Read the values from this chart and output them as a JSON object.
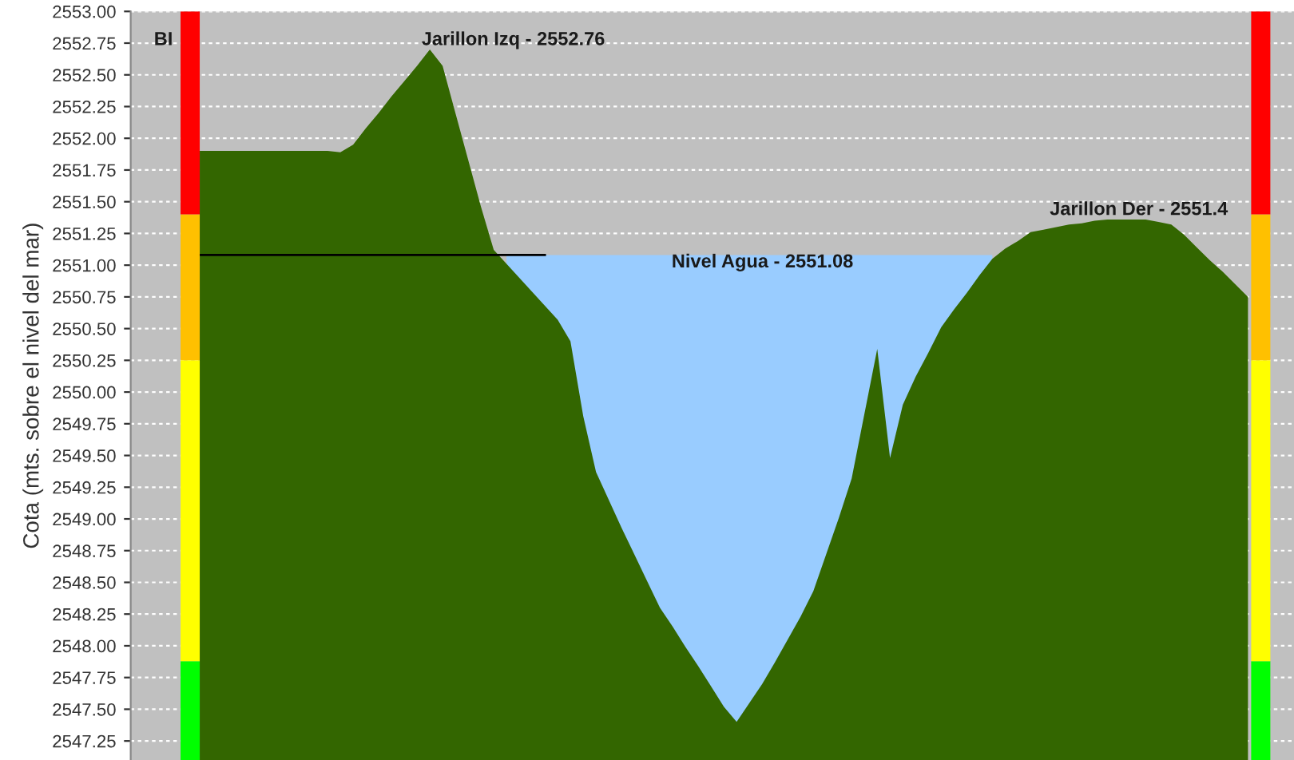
{
  "chart_data": {
    "type": "area",
    "ylabel": "Cota (mts. sobre el nivel del mar)",
    "categories": [
      null,
      null,
      null,
      null,
      null,
      null,
      null,
      null,
      null,
      null,
      null,
      null,
      null,
      null,
      null,
      null,
      null,
      null,
      null,
      null,
      null,
      null,
      null,
      null,
      null,
      null,
      null,
      null,
      null,
      null,
      null,
      null,
      null,
      null,
      null,
      null,
      null,
      null,
      null,
      null,
      null,
      null,
      null,
      null,
      null,
      null,
      null,
      null,
      null,
      null,
      null,
      null,
      null,
      null,
      null,
      null,
      null,
      null,
      null,
      null,
      null,
      null,
      null,
      null,
      null,
      null,
      null,
      null,
      null,
      null,
      null,
      null,
      null,
      null,
      null,
      null,
      null,
      null,
      null,
      null,
      null,
      null,
      null
    ],
    "series": [
      {
        "type": "area",
        "color": "#99ccff",
        "values": [
          null,
          null,
          null,
          null,
          null,
          null,
          null,
          null,
          null,
          null,
          null,
          null,
          null,
          null,
          null,
          null,
          null,
          null,
          null,
          null,
          null,
          null,
          null,
          null,
          2551.08,
          2551.08,
          2551.08,
          2551.08,
          2551.08,
          2551.08,
          2551.08,
          2551.08,
          2551.08,
          2551.08,
          2551.08,
          2551.08,
          2551.08,
          2551.08,
          2551.08,
          2551.08,
          2551.08,
          2551.08,
          2551.08,
          2551.08,
          2551.08,
          2551.08,
          2551.08,
          2551.08,
          2551.08,
          2551.08,
          2551.08,
          2551.08,
          2551.08,
          2551.08,
          2551.08,
          2551.08,
          2551.08,
          2551.08,
          2551.08,
          2551.08,
          2551.08,
          2551.08,
          2551.08,
          null,
          null,
          null,
          null,
          null,
          null,
          null,
          null,
          null,
          null,
          null,
          null,
          null,
          null,
          null,
          null,
          null,
          null,
          null,
          null
        ]
      },
      {
        "color": "#336600",
        "values": [
          2551.9,
          2551.9,
          2551.9,
          2551.9,
          2551.9,
          2551.9,
          2551.9,
          2551.9,
          2551.9,
          2551.9,
          2551.9,
          2551.89,
          2551.95,
          2552.08,
          2552.2,
          2552.33,
          2552.45,
          2552.57,
          2552.7,
          2552.57,
          2552.2,
          2551.83,
          2551.46,
          2551.12,
          2551.01,
          2550.9,
          2550.79,
          2550.68,
          2550.57,
          2550.4,
          2549.81,
          2549.37,
          2549.15,
          2548.93,
          2548.72,
          2548.51,
          2548.3,
          2548.15,
          2547.99,
          2547.84,
          2547.68,
          2547.52,
          2547.4,
          2547.55,
          2547.7,
          2547.87,
          2548.05,
          2548.23,
          2548.43,
          2548.72,
          2549.01,
          2549.32,
          2549.83,
          2550.34,
          2549.48,
          2549.9,
          2550.12,
          2550.31,
          2550.51,
          2550.65,
          2550.78,
          2550.92,
          2551.05,
          2551.13,
          2551.19,
          2551.26,
          2551.28,
          2551.3,
          2551.32,
          2551.33,
          2551.35,
          2551.36,
          2551.36,
          2551.36,
          2551.36,
          2551.34,
          2551.32,
          2551.24,
          2551.14,
          2551.04,
          2550.95,
          2550.85,
          2550.75
        ]
      },
      {
        "type": "line",
        "color": "#000000",
        "values": [
          2551.08,
          2551.08,
          2551.08,
          2551.08,
          2551.08,
          2551.08,
          2551.08,
          2551.08,
          2551.08,
          2551.08,
          2551.08,
          2551.08,
          2551.08,
          2551.08,
          2551.08,
          2551.08,
          2551.08,
          2551.08,
          2551.08,
          2551.08,
          2551.08,
          2551.08,
          2551.08,
          2551.08,
          2551.08,
          2551.08,
          2551.08,
          2551.08,
          null,
          null,
          null,
          null,
          null,
          null,
          null,
          null,
          null,
          null,
          null,
          null,
          null,
          null,
          null,
          null,
          null,
          null,
          null,
          null,
          null,
          null,
          null,
          null,
          null,
          null,
          null,
          null,
          null,
          null,
          null,
          null,
          null,
          null,
          null,
          null,
          null,
          null,
          null,
          null,
          null,
          null,
          null,
          null,
          null,
          null,
          null,
          null,
          null,
          null,
          null,
          null,
          null,
          null,
          null
        ]
      }
    ],
    "annotations": [
      "BI",
      "Jarillon Izq - 2552.76",
      "Nivel Agua - 2551.08",
      "Jarillon Der - 2551.4"
    ],
    "ylim": [
      2547.1,
      2553.0
    ],
    "yticks": [
      {
        "value": 2547.25,
        "label": "2547.25"
      },
      {
        "value": 2547.5,
        "label": "2547.50"
      },
      {
        "value": 2547.75,
        "label": "2547.75"
      },
      {
        "value": 2548.0,
        "label": "2548.00"
      },
      {
        "value": 2548.25,
        "label": "2548.25"
      },
      {
        "value": 2548.5,
        "label": "2548.50"
      },
      {
        "value": 2548.75,
        "label": "2548.75"
      },
      {
        "value": 2549.0,
        "label": "2549.00"
      },
      {
        "value": 2549.25,
        "label": "2549.25"
      },
      {
        "value": 2549.5,
        "label": "2549.50"
      },
      {
        "value": 2549.75,
        "label": "2549.75"
      },
      {
        "value": 2550.0,
        "label": "2550.00"
      },
      {
        "value": 2550.25,
        "label": "2550.25"
      },
      {
        "value": 2550.5,
        "label": "2550.50"
      },
      {
        "value": 2550.75,
        "label": "2550.75"
      },
      {
        "value": 2551.0,
        "label": "2551.00"
      },
      {
        "value": 2551.25,
        "label": "2551.25"
      },
      {
        "value": 2551.5,
        "label": "2551.50"
      },
      {
        "value": 2551.75,
        "label": "2551.75"
      },
      {
        "value": 2552.0,
        "label": "2552.00"
      },
      {
        "value": 2552.25,
        "label": "2552.25"
      },
      {
        "value": 2552.5,
        "label": "2552.50"
      },
      {
        "value": 2552.75,
        "label": "2552.75"
      },
      {
        "value": 2553.0,
        "label": "2553.00"
      }
    ],
    "tick_labels": "y",
    "grid": "y"
  }
}
